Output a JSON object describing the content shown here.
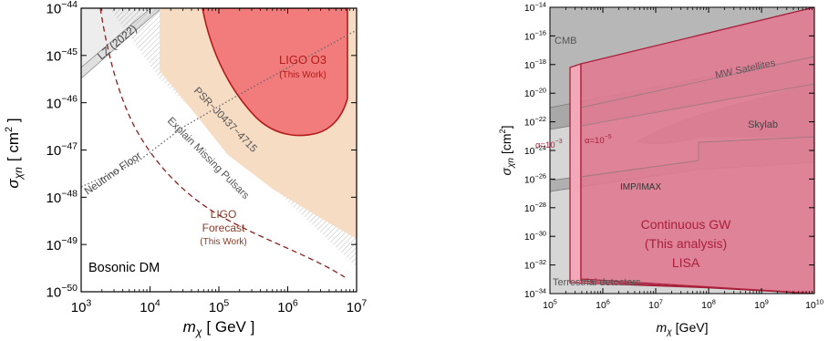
{
  "chart_data": [
    {
      "type": "area",
      "xlabel_main": "m",
      "xlabel_sub": "χ",
      "xlabel_unit": "[ GeV ]",
      "ylabel_main": "σ",
      "ylabel_sub": "χn",
      "ylabel_unit": "[ cm",
      "ylabel_unit_sup": "2",
      "ylabel_unit_end": " ]",
      "xscale": "log",
      "yscale": "log",
      "xlim": [
        1000,
        10000000
      ],
      "ylim": [
        1e-50,
        1e-44
      ],
      "x_ticks": [
        {
          "base": "10",
          "exp": "3"
        },
        {
          "base": "10",
          "exp": "4"
        },
        {
          "base": "10",
          "exp": "5"
        },
        {
          "base": "10",
          "exp": "6"
        },
        {
          "base": "10",
          "exp": "7"
        }
      ],
      "y_ticks": [
        {
          "base": "10",
          "exp": "−50"
        },
        {
          "base": "10",
          "exp": "−49"
        },
        {
          "base": "10",
          "exp": "−48"
        },
        {
          "base": "10",
          "exp": "−47"
        },
        {
          "base": "10",
          "exp": "−46"
        },
        {
          "base": "10",
          "exp": "−45"
        },
        {
          "base": "10",
          "exp": "−44"
        }
      ],
      "annotations": {
        "lz": "LZ (2022)",
        "ligo_o3": "LIGO O3",
        "ligo_o3_note": "(This Work)",
        "psr": "PSR−J0437−4715",
        "explain": "Explain Missing Pulsars",
        "neutrino": "Neutrino Floor",
        "forecast_1": "LIGO",
        "forecast_2": "Forecast",
        "forecast_note": "(This Work)",
        "bosonic": "Bosonic DM"
      },
      "regions": [
        {
          "name": "LZ (2022)",
          "color": "#eeeeee",
          "boundary": [
            [
              1000,
              3e-45
            ],
            [
              3000,
              1.2e-44
            ],
            [
              10000,
              1e-44
            ]
          ]
        },
        {
          "name": "PSR−J0437−4715",
          "color": "#f7dcc4",
          "boundary": [
            [
              15000,
              1e-44
            ],
            [
              15000,
              6e-49
            ],
            [
              10000000,
              4e-49
            ]
          ]
        },
        {
          "name": "LIGO O3",
          "color": "#f07a7a",
          "boundary": [
            [
              200000,
              1e-44
            ],
            [
              8000000,
              1e-44
            ],
            [
              8000000,
              2e-46
            ],
            [
              4000000,
              7e-47
            ],
            [
              1000000,
              5e-47
            ]
          ]
        },
        {
          "name": "Explain Missing Pulsars",
          "color": "#ffffff",
          "boundary": [
            [
              5000,
              1e-44
            ],
            [
              10000000,
              2e-49
            ]
          ]
        }
      ],
      "lines": [
        {
          "name": "Neutrino Floor",
          "style": "dotted",
          "x": [
            1000,
            10000,
            100000,
            1000000,
            10000000
          ],
          "y": [
            2.5e-48,
            1.3e-47,
            1e-46,
            1e-45,
            1e-44
          ]
        },
        {
          "name": "LIGO Forecast",
          "style": "dashed",
          "x": [
            1600,
            3000,
            10000,
            100000,
            1000000,
            8000000
          ],
          "y": [
            1e-46,
            1e-47,
            6e-49,
            3e-49,
            8e-50,
            1e-50
          ]
        }
      ]
    },
    {
      "type": "area",
      "xlabel_main": "m",
      "xlabel_sub": "χ",
      "xlabel_unit": "[GeV]",
      "ylabel_main": "σ",
      "ylabel_sub": "χn",
      "ylabel_unit": "[cm",
      "ylabel_unit_sup": "2",
      "ylabel_unit_end": "]",
      "xscale": "log",
      "yscale": "log",
      "xlim": [
        100000,
        10000000000
      ],
      "ylim": [
        1e-34,
        1e-14
      ],
      "x_ticks": [
        {
          "base": "10",
          "exp": "5"
        },
        {
          "base": "10",
          "exp": "6"
        },
        {
          "base": "10",
          "exp": "7"
        },
        {
          "base": "10",
          "exp": "8"
        },
        {
          "base": "10",
          "exp": "9"
        },
        {
          "base": "10",
          "exp": "10"
        }
      ],
      "y_ticks": [
        {
          "base": "10",
          "exp": "−34"
        },
        {
          "base": "10",
          "exp": "−32"
        },
        {
          "base": "10",
          "exp": "−30"
        },
        {
          "base": "10",
          "exp": "−28"
        },
        {
          "base": "10",
          "exp": "−26"
        },
        {
          "base": "10",
          "exp": "−24"
        },
        {
          "base": "10",
          "exp": "−22"
        },
        {
          "base": "10",
          "exp": "−20"
        },
        {
          "base": "10",
          "exp": "−18"
        },
        {
          "base": "10",
          "exp": "−16"
        },
        {
          "base": "10",
          "exp": "−14"
        }
      ],
      "annotations": {
        "cmb": "CMB",
        "mw": "MW Satellites",
        "skylab": "Skylab",
        "imp": "IMP/IMAX",
        "terrestrial": "Terrestrial detectors",
        "gw_1": "Continuous GW",
        "gw_2": "(This analysis)",
        "gw_3": "LISA",
        "alpha3": "α=10",
        "alpha3_exp": "−3",
        "alpha5": "α=10",
        "alpha5_exp": "−5"
      },
      "regions": [
        {
          "name": "Terrestrial detectors",
          "color": "#d9d9d9",
          "boundary": [
            [
              100000,
              1e-26
            ],
            [
              100000000,
              1e-25
            ],
            [
              10000000000,
              1e-24
            ]
          ]
        },
        {
          "name": "CMB",
          "color": "#bdbdbd",
          "boundary": [
            [
              100000,
              1e-21
            ],
            [
              10000000000,
              1e-17
            ]
          ]
        },
        {
          "name": "MW Satellites",
          "color": "#a9a9a9",
          "boundary": [
            [
              100000,
              1e-21
            ],
            [
              10000000000,
              1e-19
            ]
          ]
        },
        {
          "name": "Skylab",
          "color": "#9a9a9a",
          "boundary": [
            [
              10000000,
              1e-23
            ],
            [
              10000000000,
              1e-24
            ]
          ]
        },
        {
          "name": "IMP/IMAX",
          "color": "#9a9a9a",
          "boundary": [
            [
              100000000,
              1e-24
            ],
            [
              10000000000,
              1e-24
            ]
          ]
        },
        {
          "name": "α=10^−3",
          "color": "#f2a7b8",
          "boundary": [
            [
              600000,
              1e-18
            ],
            [
              600000,
              1e-33
            ],
            [
              10000000000,
              1e-34
            ]
          ]
        },
        {
          "name": "α=10^−5",
          "color": "#e07a92",
          "boundary": [
            [
              750000,
              1e-17
            ],
            [
              750000,
              1e-32
            ],
            [
              10000000000,
              1e-34
            ]
          ]
        }
      ]
    }
  ]
}
